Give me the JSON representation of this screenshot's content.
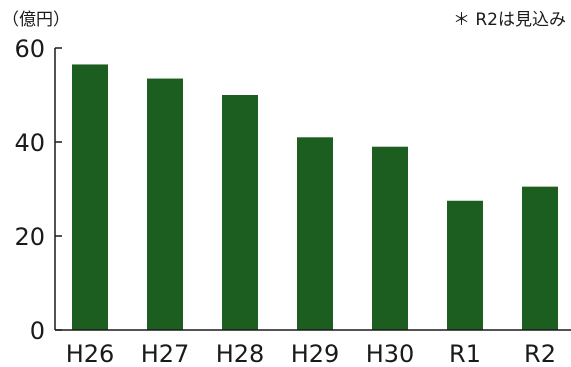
{
  "chart_data": {
    "type": "bar",
    "unit_label": "（億円）",
    "note": "＊ R2は見込み",
    "categories": [
      "H26",
      "H27",
      "H28",
      "H29",
      "H30",
      "R1",
      "R2"
    ],
    "values": [
      56.5,
      53.5,
      50.0,
      41.0,
      39.0,
      27.5,
      30.5
    ],
    "ylim": [
      0,
      60
    ],
    "yticks": [
      "0",
      "20",
      "40",
      "60"
    ],
    "bar_color": "#1b5e20",
    "grid": false
  }
}
